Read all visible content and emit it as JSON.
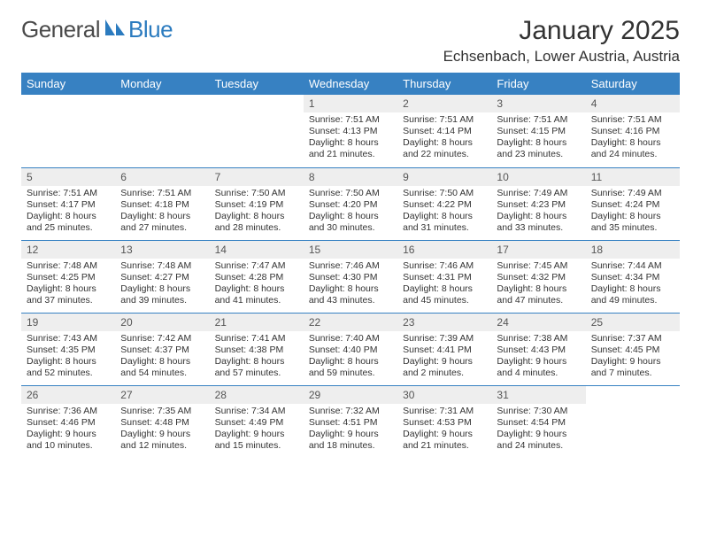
{
  "logo": {
    "text1": "General",
    "text2": "Blue"
  },
  "title": "January 2025",
  "location": "Echsenbach, Lower Austria, Austria",
  "colors": {
    "header_bg": "#3781c2",
    "header_text": "#ffffff",
    "daynum_bg": "#eeeeee",
    "row_border": "#3781c2",
    "body_text": "#333333",
    "logo_gray": "#4a4a4a",
    "logo_blue": "#2b7bbf",
    "page_bg": "#ffffff"
  },
  "fonts": {
    "month_title_size": 30,
    "location_size": 17,
    "weekday_size": 13,
    "daynum_size": 12,
    "cell_size": 10.5,
    "logo_size": 26
  },
  "weekdays": [
    "Sunday",
    "Monday",
    "Tuesday",
    "Wednesday",
    "Thursday",
    "Friday",
    "Saturday"
  ],
  "weeks": [
    [
      {
        "n": "",
        "sr": "",
        "ss": "",
        "dl": ""
      },
      {
        "n": "",
        "sr": "",
        "ss": "",
        "dl": ""
      },
      {
        "n": "",
        "sr": "",
        "ss": "",
        "dl": ""
      },
      {
        "n": "1",
        "sr": "7:51 AM",
        "ss": "4:13 PM",
        "dl": "8 hours and 21 minutes."
      },
      {
        "n": "2",
        "sr": "7:51 AM",
        "ss": "4:14 PM",
        "dl": "8 hours and 22 minutes."
      },
      {
        "n": "3",
        "sr": "7:51 AM",
        "ss": "4:15 PM",
        "dl": "8 hours and 23 minutes."
      },
      {
        "n": "4",
        "sr": "7:51 AM",
        "ss": "4:16 PM",
        "dl": "8 hours and 24 minutes."
      }
    ],
    [
      {
        "n": "5",
        "sr": "7:51 AM",
        "ss": "4:17 PM",
        "dl": "8 hours and 25 minutes."
      },
      {
        "n": "6",
        "sr": "7:51 AM",
        "ss": "4:18 PM",
        "dl": "8 hours and 27 minutes."
      },
      {
        "n": "7",
        "sr": "7:50 AM",
        "ss": "4:19 PM",
        "dl": "8 hours and 28 minutes."
      },
      {
        "n": "8",
        "sr": "7:50 AM",
        "ss": "4:20 PM",
        "dl": "8 hours and 30 minutes."
      },
      {
        "n": "9",
        "sr": "7:50 AM",
        "ss": "4:22 PM",
        "dl": "8 hours and 31 minutes."
      },
      {
        "n": "10",
        "sr": "7:49 AM",
        "ss": "4:23 PM",
        "dl": "8 hours and 33 minutes."
      },
      {
        "n": "11",
        "sr": "7:49 AM",
        "ss": "4:24 PM",
        "dl": "8 hours and 35 minutes."
      }
    ],
    [
      {
        "n": "12",
        "sr": "7:48 AM",
        "ss": "4:25 PM",
        "dl": "8 hours and 37 minutes."
      },
      {
        "n": "13",
        "sr": "7:48 AM",
        "ss": "4:27 PM",
        "dl": "8 hours and 39 minutes."
      },
      {
        "n": "14",
        "sr": "7:47 AM",
        "ss": "4:28 PM",
        "dl": "8 hours and 41 minutes."
      },
      {
        "n": "15",
        "sr": "7:46 AM",
        "ss": "4:30 PM",
        "dl": "8 hours and 43 minutes."
      },
      {
        "n": "16",
        "sr": "7:46 AM",
        "ss": "4:31 PM",
        "dl": "8 hours and 45 minutes."
      },
      {
        "n": "17",
        "sr": "7:45 AM",
        "ss": "4:32 PM",
        "dl": "8 hours and 47 minutes."
      },
      {
        "n": "18",
        "sr": "7:44 AM",
        "ss": "4:34 PM",
        "dl": "8 hours and 49 minutes."
      }
    ],
    [
      {
        "n": "19",
        "sr": "7:43 AM",
        "ss": "4:35 PM",
        "dl": "8 hours and 52 minutes."
      },
      {
        "n": "20",
        "sr": "7:42 AM",
        "ss": "4:37 PM",
        "dl": "8 hours and 54 minutes."
      },
      {
        "n": "21",
        "sr": "7:41 AM",
        "ss": "4:38 PM",
        "dl": "8 hours and 57 minutes."
      },
      {
        "n": "22",
        "sr": "7:40 AM",
        "ss": "4:40 PM",
        "dl": "8 hours and 59 minutes."
      },
      {
        "n": "23",
        "sr": "7:39 AM",
        "ss": "4:41 PM",
        "dl": "9 hours and 2 minutes."
      },
      {
        "n": "24",
        "sr": "7:38 AM",
        "ss": "4:43 PM",
        "dl": "9 hours and 4 minutes."
      },
      {
        "n": "25",
        "sr": "7:37 AM",
        "ss": "4:45 PM",
        "dl": "9 hours and 7 minutes."
      }
    ],
    [
      {
        "n": "26",
        "sr": "7:36 AM",
        "ss": "4:46 PM",
        "dl": "9 hours and 10 minutes."
      },
      {
        "n": "27",
        "sr": "7:35 AM",
        "ss": "4:48 PM",
        "dl": "9 hours and 12 minutes."
      },
      {
        "n": "28",
        "sr": "7:34 AM",
        "ss": "4:49 PM",
        "dl": "9 hours and 15 minutes."
      },
      {
        "n": "29",
        "sr": "7:32 AM",
        "ss": "4:51 PM",
        "dl": "9 hours and 18 minutes."
      },
      {
        "n": "30",
        "sr": "7:31 AM",
        "ss": "4:53 PM",
        "dl": "9 hours and 21 minutes."
      },
      {
        "n": "31",
        "sr": "7:30 AM",
        "ss": "4:54 PM",
        "dl": "9 hours and 24 minutes."
      },
      {
        "n": "",
        "sr": "",
        "ss": "",
        "dl": ""
      }
    ]
  ],
  "labels": {
    "sunrise": "Sunrise:",
    "sunset": "Sunset:",
    "daylight": "Daylight:"
  }
}
